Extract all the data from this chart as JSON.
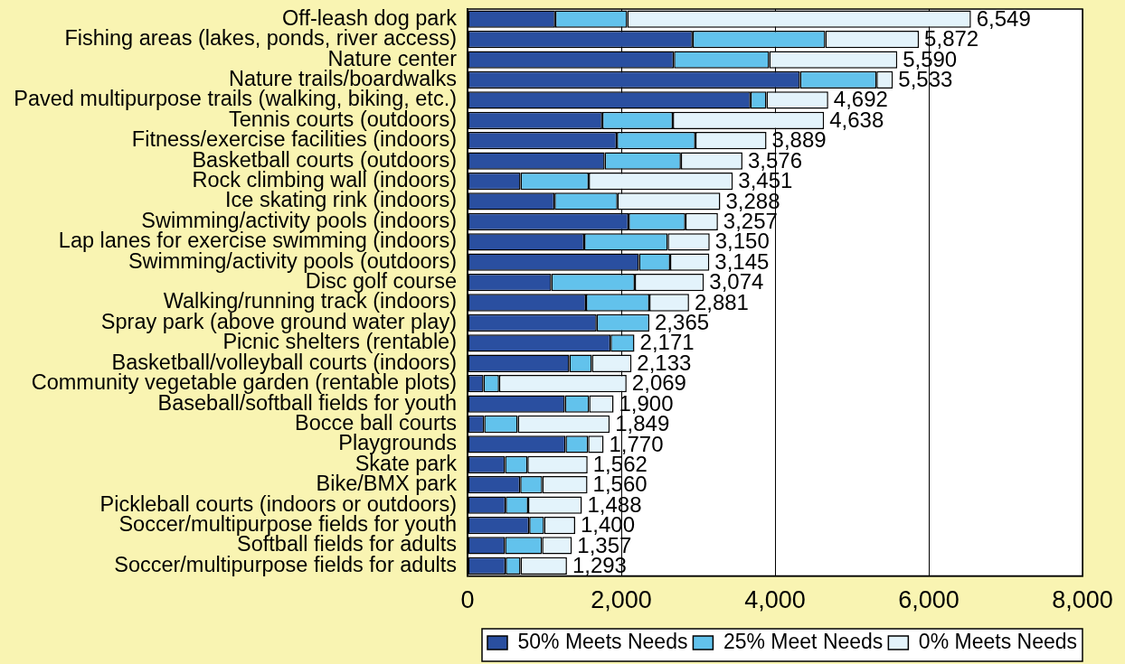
{
  "chart_data": {
    "type": "bar",
    "orientation": "horizontal",
    "stacked": true,
    "categories": [
      "Off-leash dog park",
      "Fishing areas (lakes, ponds, river access)",
      "Nature center",
      "Nature trails/boardwalks",
      "Paved multipurpose trails (walking, biking, etc.)",
      "Tennis courts (outdoors)",
      "Fitness/exercise facilities (indoors)",
      "Basketball courts (outdoors)",
      "Rock climbing wall (indoors)",
      "Ice skating rink (indoors)",
      "Swimming/activity pools (indoors)",
      "Lap lanes for exercise swimming (indoors)",
      "Swimming/activity pools (outdoors)",
      "Disc golf course",
      "Walking/running track (indoors)",
      "Spray park (above ground water play)",
      "Picnic shelters (rentable)",
      "Basketball/volleyball courts (indoors)",
      "Community vegetable garden (rentable plots)",
      "Baseball/softball fields for youth",
      "Bocce ball courts",
      "Playgrounds",
      "Skate park",
      "Bike/BMX park",
      "Pickleball courts (indoors or outdoors)",
      "Soccer/multipurpose fields for youth",
      "Softball fields for adults",
      "Soccer/multipurpose fields for adults"
    ],
    "series": [
      {
        "name": "50% Meets Needs",
        "color": "#2a4fa0",
        "values": [
          1140,
          2928,
          2685,
          4325,
          3681,
          1752,
          1942,
          1784,
          689,
          1131,
          2095,
          1518,
          2230,
          1090,
          1541,
          1680,
          1861,
          1324,
          207,
          1266,
          216,
          1275,
          487,
          685,
          496,
          802,
          487,
          496
        ]
      },
      {
        "name": "25% Meet Needs",
        "color": "#62c2ec",
        "values": [
          937,
          1726,
          1239,
          995,
          207,
          919,
          1022,
          991,
          888,
          820,
          739,
          1086,
          405,
          1086,
          824,
          685,
          310,
          293,
          203,
          315,
          437,
          293,
          292,
          288,
          292,
          194,
          482,
          193
        ]
      },
      {
        "name": "0% Meets Needs",
        "color": "#e3f3fb",
        "values": [
          4472,
          1218,
          1666,
          213,
          804,
          1967,
          925,
          801,
          1874,
          1337,
          423,
          546,
          510,
          898,
          516,
          0,
          0,
          516,
          1659,
          319,
          1196,
          202,
          783,
          587,
          700,
          404,
          388,
          604
        ]
      }
    ],
    "totals": [
      "6,549",
      "5,872",
      "5,590",
      "5,533",
      "4,692",
      "4,638",
      "3,889",
      "3,576",
      "3,451",
      "3,288",
      "3,257",
      "3,150",
      "3,145",
      "3,074",
      "2,881",
      "2,365",
      "2,171",
      "2,133",
      "2,069",
      "1,900",
      "1,849",
      "1,770",
      "1,562",
      "1,560",
      "1,488",
      "1,400",
      "1,357",
      "1,293"
    ],
    "xlim": [
      0,
      8000
    ],
    "xticks": [
      0,
      {
        "value": 2000,
        "label": "2,000"
      },
      {
        "value": 4000,
        "label": "4,000"
      },
      {
        "value": 6000,
        "label": "6,000"
      },
      {
        "value": 8000,
        "label": "8,000"
      }
    ],
    "grid": "x",
    "legend": "bottom"
  }
}
